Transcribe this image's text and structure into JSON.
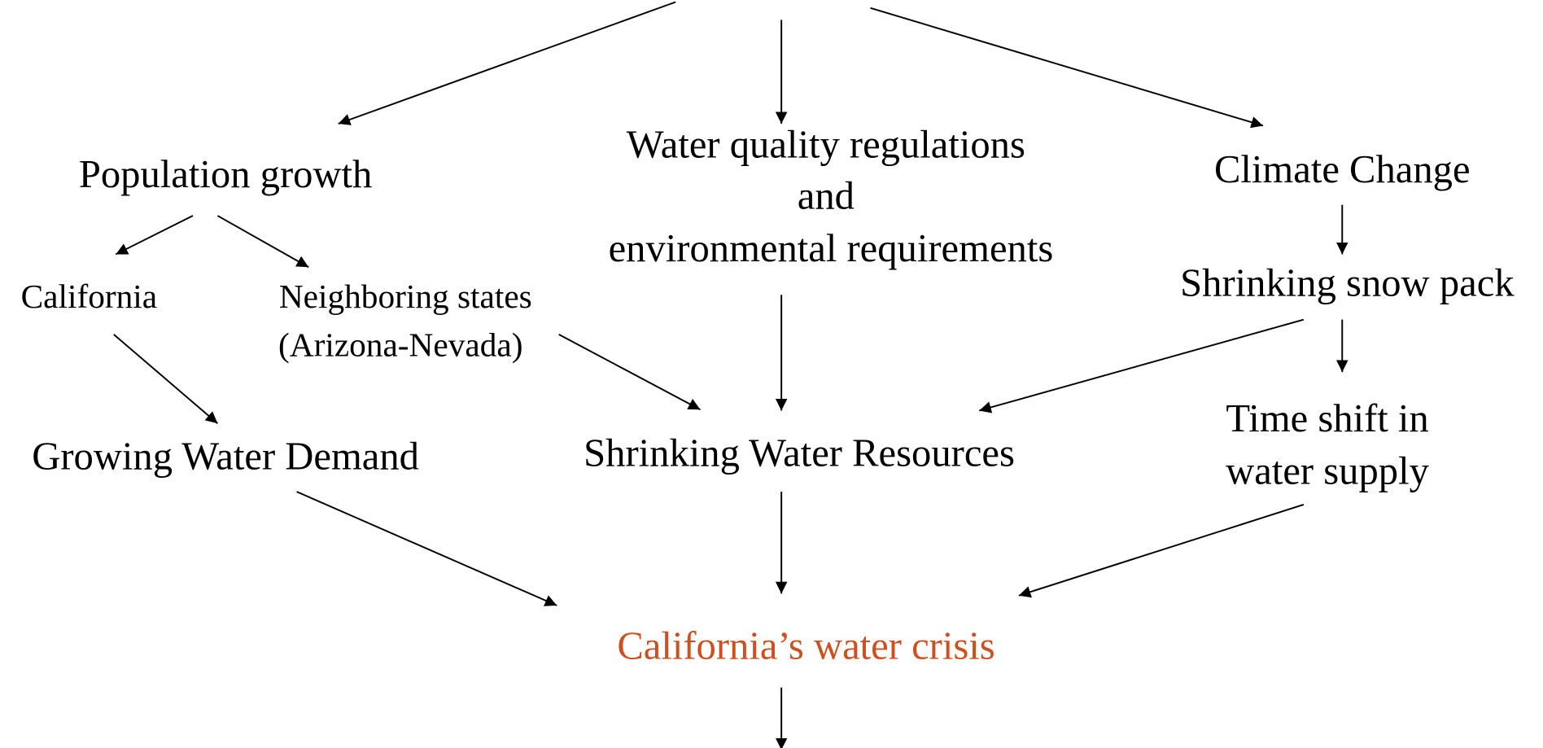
{
  "nodes": [
    {
      "label": [
        "Population growth"
      ]
    },
    {
      "label": [
        "Water quality regulations",
        "and",
        "environmental requirements"
      ]
    },
    {
      "label": [
        "Climate Change"
      ]
    },
    {
      "label": [
        "Shrinking snow pack"
      ]
    },
    {
      "label": [
        "California"
      ]
    },
    {
      "label": [
        "Neighboring states",
        "(Arizona-Nevada)"
      ]
    },
    {
      "label": [
        "Growing Water Demand"
      ]
    },
    {
      "label": [
        "Shrinking Water Resources"
      ]
    },
    {
      "label": [
        "Time shift in",
        "water supply"
      ]
    },
    {
      "label": [
        "California’s water crisis"
      ]
    }
  ]
}
